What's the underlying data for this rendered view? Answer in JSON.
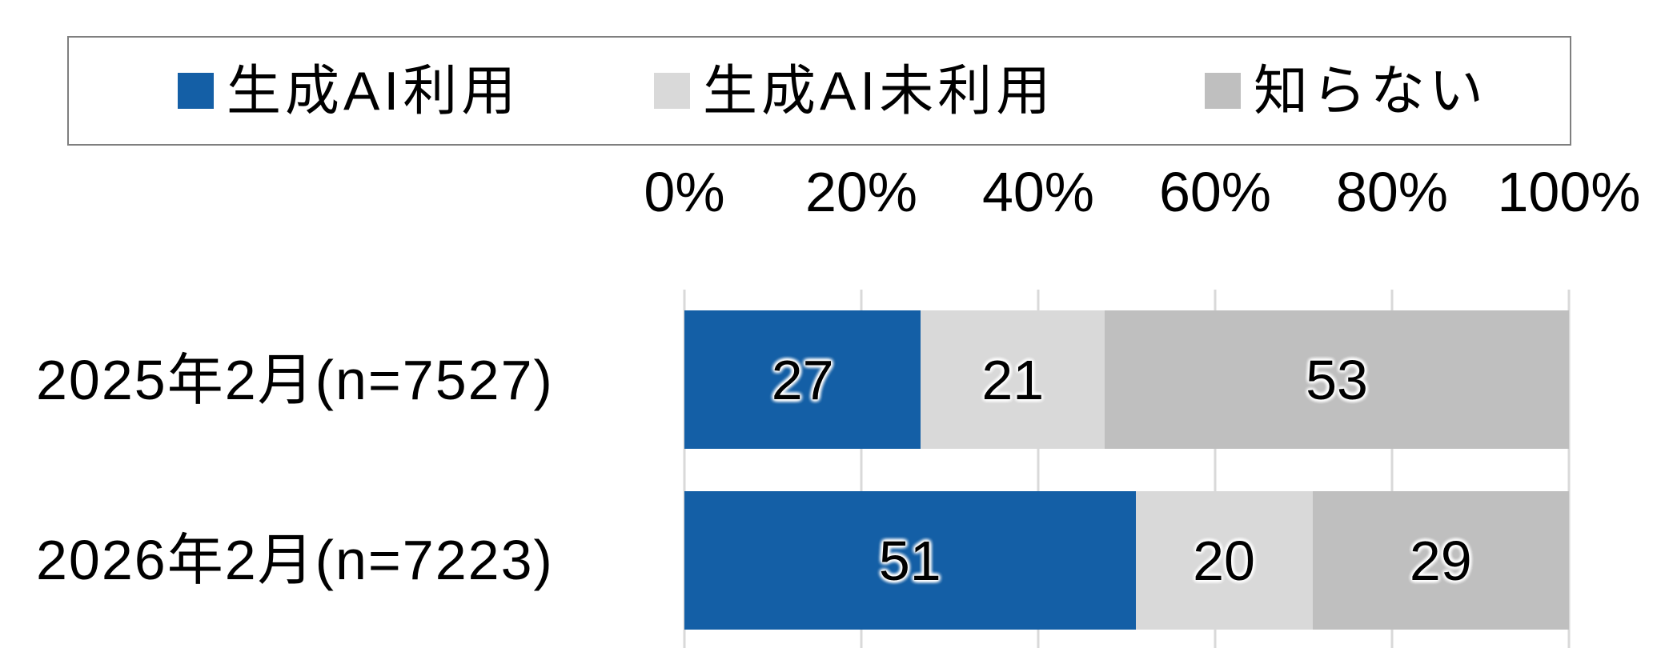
{
  "chart_data": {
    "type": "bar",
    "variant": "horizontal-stacked-100-percent",
    "title": "",
    "categories": [
      "2025年2月(n=7527)",
      "2026年2月(n=7223)"
    ],
    "series": [
      {
        "name": "生成AI利用",
        "color": "#145FA6",
        "values": [
          27,
          51
        ]
      },
      {
        "name": "生成AI未利用",
        "color": "#D9D9D9",
        "values": [
          21,
          20
        ]
      },
      {
        "name": "知らない",
        "color": "#BFBFBF",
        "values": [
          53,
          29
        ]
      }
    ],
    "value_labels": [
      [
        "27",
        "21",
        "53"
      ],
      [
        "51",
        "20",
        "29"
      ]
    ],
    "x_axis": {
      "position": "top",
      "min": 0,
      "max": 100,
      "tick_labels": [
        "0%",
        "20%",
        "40%",
        "60%",
        "80%",
        "100%"
      ],
      "gridlines": true
    },
    "legend_position": "top",
    "legend_border": true
  },
  "colors": {
    "background": "#FFFFFF",
    "gridline": "#D9D9D9",
    "legend_border": "#7F7F7F",
    "text": "#000000"
  }
}
